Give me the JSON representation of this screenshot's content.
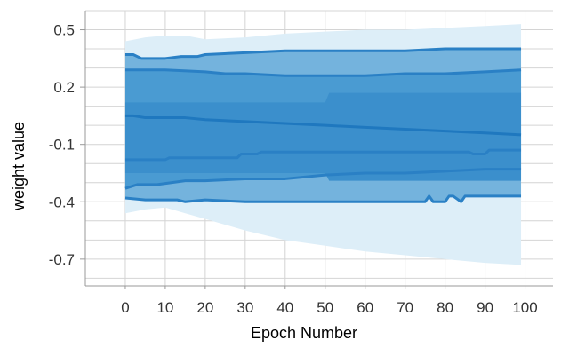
{
  "chart_data": {
    "type": "area",
    "title": "",
    "xlabel": "Epoch Number",
    "ylabel": "weight value",
    "xlim": [
      -10,
      107
    ],
    "ylim": [
      -0.84,
      0.6
    ],
    "xticks": [
      0,
      10,
      20,
      30,
      40,
      50,
      60,
      70,
      80,
      90,
      100
    ],
    "yticks": [
      0.5,
      0.2,
      -0.1,
      -0.4,
      -0.7
    ],
    "ytick_labels": [
      "0.5",
      "0.2",
      "-0.1",
      "-0.4",
      "-0.7"
    ],
    "grid": true,
    "legend": "none",
    "colors": {
      "outer_band": "#ddeef8",
      "band_2": "#74b3dd",
      "band_3": "#4a9bd2",
      "band_4": "#3b8fcc",
      "line": "#2a80c5",
      "median": "#1f78bf",
      "grid": "#d4d4d4",
      "axis": "#999999"
    },
    "series": [
      {
        "role": "max",
        "x": [
          0,
          5,
          10,
          15,
          20,
          30,
          40,
          50,
          60,
          70,
          80,
          90,
          99
        ],
        "values": [
          0.44,
          0.46,
          0.47,
          0.47,
          0.45,
          0.46,
          0.48,
          0.49,
          0.5,
          0.5,
          0.51,
          0.52,
          0.53
        ]
      },
      {
        "role": "p93",
        "x": [
          0,
          2,
          4,
          10,
          14,
          18,
          20,
          30,
          40,
          50,
          60,
          70,
          80,
          90,
          99
        ],
        "values": [
          0.37,
          0.37,
          0.35,
          0.35,
          0.36,
          0.36,
          0.37,
          0.38,
          0.39,
          0.39,
          0.39,
          0.39,
          0.4,
          0.4,
          0.4
        ]
      },
      {
        "role": "p84",
        "x": [
          0,
          10,
          20,
          25,
          30,
          40,
          50,
          60,
          70,
          80,
          90,
          99
        ],
        "values": [
          0.29,
          0.29,
          0.28,
          0.27,
          0.27,
          0.26,
          0.26,
          0.26,
          0.27,
          0.27,
          0.28,
          0.29
        ]
      },
      {
        "role": "p69",
        "x": [
          0,
          50,
          51,
          99
        ],
        "values": [
          0.12,
          0.12,
          0.17,
          0.17
        ]
      },
      {
        "role": "median",
        "x": [
          0,
          2,
          5,
          10,
          15,
          20,
          30,
          40,
          50,
          60,
          70,
          80,
          90,
          99
        ],
        "values": [
          0.05,
          0.05,
          0.04,
          0.04,
          0.04,
          0.03,
          0.02,
          0.01,
          0.0,
          -0.01,
          -0.02,
          -0.03,
          -0.04,
          -0.05
        ]
      },
      {
        "role": "p31",
        "x": [
          0,
          50,
          51,
          99
        ],
        "values": [
          -0.25,
          -0.25,
          -0.29,
          -0.29
        ]
      },
      {
        "role": "p16",
        "x": [
          0,
          10,
          11,
          28,
          29,
          33,
          34,
          86,
          87,
          90,
          91,
          99
        ],
        "values": [
          -0.18,
          -0.18,
          -0.17,
          -0.17,
          -0.15,
          -0.15,
          -0.14,
          -0.14,
          -0.15,
          -0.15,
          -0.13,
          -0.13
        ]
      },
      {
        "role": "p7",
        "x": [
          0,
          3,
          8,
          15,
          20,
          30,
          40,
          50,
          60,
          70,
          80,
          90,
          99
        ],
        "values": [
          -0.33,
          -0.31,
          -0.31,
          -0.29,
          -0.29,
          -0.28,
          -0.28,
          -0.26,
          -0.25,
          -0.25,
          -0.24,
          -0.23,
          -0.23
        ]
      },
      {
        "role": "min",
        "x": [
          0,
          5,
          10,
          13,
          15,
          20,
          30,
          50,
          70,
          75,
          76,
          77,
          78,
          80,
          81,
          82,
          84,
          85,
          86,
          99
        ],
        "values": [
          -0.38,
          -0.39,
          -0.39,
          -0.39,
          -0.4,
          -0.39,
          -0.4,
          -0.4,
          -0.4,
          -0.4,
          -0.37,
          -0.4,
          -0.4,
          -0.4,
          -0.37,
          -0.37,
          -0.4,
          -0.37,
          -0.37,
          -0.37
        ]
      },
      {
        "role": "outer_min",
        "x": [
          0,
          5,
          10,
          20,
          30,
          40,
          50,
          60,
          70,
          80,
          90,
          99
        ],
        "values": [
          -0.46,
          -0.44,
          -0.43,
          -0.49,
          -0.55,
          -0.6,
          -0.63,
          -0.66,
          -0.68,
          -0.7,
          -0.72,
          -0.73
        ]
      }
    ]
  }
}
